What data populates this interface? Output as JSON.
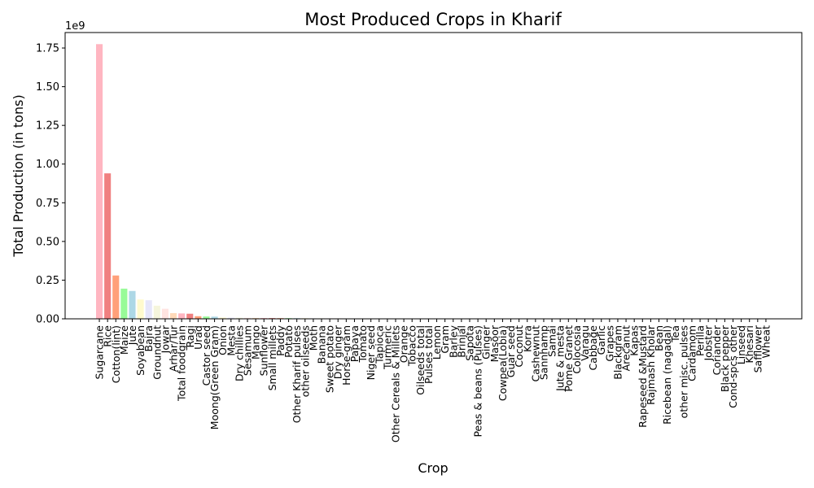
{
  "chart_data": {
    "type": "bar",
    "title": "Most Produced Crops in Kharif",
    "xlabel": "Crop",
    "ylabel": "Total Production (in tons)",
    "y_offset_label": "1e9",
    "ylim": [
      0,
      1850000000.0
    ],
    "yticks": [
      0,
      250000000,
      500000000,
      750000000,
      1000000000,
      1250000000,
      1500000000,
      1750000000
    ],
    "ytick_labels": [
      "0.00",
      "0.25",
      "0.50",
      "0.75",
      "1.00",
      "1.25",
      "1.50",
      "1.75"
    ],
    "grid": false,
    "categories": [
      "Sugarcane",
      "Rice",
      "Cotton(lint)",
      "Maize",
      "Jute",
      "Soyabean",
      "Bajra",
      "Groundnut",
      "Jowar",
      "Arhar/Tur",
      "Total foodgrain",
      "Ragi",
      "Urad",
      "Castor seed",
      "Moong(Green Gram)",
      "Onion",
      "Mesta",
      "Dry chillies",
      "Sesamum",
      "Mango",
      "Sunflower",
      "Small millets",
      "Paddy",
      "Potato",
      "Other Kharif pulses",
      "other oilseeds",
      "Moth",
      "Banana",
      "Sweet potato",
      "Dry ginger",
      "Horse-gram",
      "Papaya",
      "Tomato",
      "Niger seed",
      "Tapioca",
      "Turmeric",
      "Other Cereals & Millets",
      "Orange",
      "Tobacco",
      "Oilseeds total",
      "Pulses total",
      "Lemon",
      "Gram",
      "Barley",
      "Brinjal",
      "Sapota",
      "Peas & beans (Pulses)",
      "Ginger",
      "Masoor",
      "Cowpea(Lobia)",
      "Guar seed",
      "Coconut",
      "Korra",
      "Cashewnut",
      "Sannhamp",
      "Samai",
      "Jute & mesta",
      "Pome Granet",
      "Colocosia",
      "Varagu",
      "Cabbage",
      "Garlic",
      "Grapes",
      "Blackgram",
      "Arecanut",
      "Kapas",
      "Rapeseed &Mustard",
      "Rajmash Kholar",
      "Bean",
      "Ricebean (nagadal)",
      "Tea",
      "other misc. pulses",
      "Cardamom",
      "Perilla",
      "Jobster",
      "Coriander",
      "Black pepper",
      "Cond-spcs other",
      "Linseed",
      "Khesari",
      "Safflower",
      "Wheat"
    ],
    "values": [
      1775000000,
      940000000,
      280000000,
      195000000,
      180000000,
      125000000,
      120000000,
      85000000,
      65000000,
      37000000,
      35000000,
      33000000,
      17000000,
      15000000,
      14000000,
      8000000,
      7000000,
      6500000,
      6000000,
      5500000,
      5000000,
      4800000,
      4500000,
      4300000,
      4000000,
      3800000,
      3500000,
      3300000,
      3000000,
      2800000,
      2600000,
      2400000,
      2200000,
      2000000,
      1800000,
      1700000,
      1600000,
      1500000,
      1400000,
      1300000,
      1200000,
      1100000,
      1000000,
      950000,
      900000,
      850000,
      800000,
      750000,
      700000,
      650000,
      600000,
      550000,
      500000,
      480000,
      460000,
      440000,
      420000,
      400000,
      380000,
      360000,
      340000,
      320000,
      300000,
      280000,
      260000,
      240000,
      220000,
      200000,
      180000,
      160000,
      140000,
      120000,
      100000,
      90000,
      80000,
      70000,
      60000,
      50000,
      40000,
      30000,
      20000,
      10000
    ],
    "colors": [
      "#ffb6c1",
      "#f08080",
      "#ffa07a",
      "#98fb98",
      "#add8e6",
      "#fffacd",
      "#e6e6fa",
      "#f5f5dc",
      "#ffe4e1",
      "#ffdab9",
      "#ffb6c1",
      "#f08080",
      "#ffa07a",
      "#98fb98",
      "#add8e6",
      "#fffacd",
      "#e6e6fa",
      "#f5f5dc",
      "#ffe4e1",
      "#ffdab9"
    ]
  }
}
